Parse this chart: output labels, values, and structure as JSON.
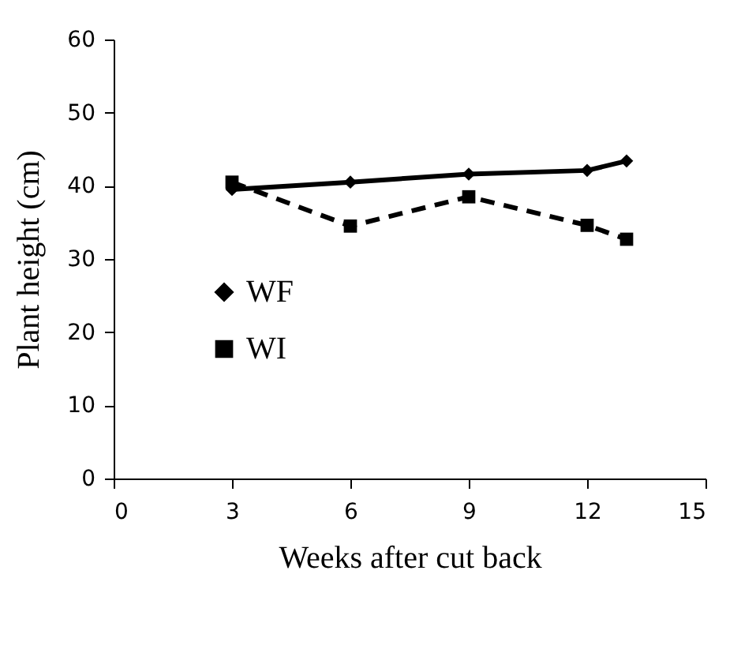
{
  "chart_data": {
    "type": "line",
    "xlabel": "Weeks after cut back",
    "ylabel": "Plant height (cm)",
    "x": [
      3,
      6,
      9,
      12,
      13
    ],
    "series": [
      {
        "name": "WF",
        "color": "#000000",
        "values": [
          39.5,
          40.5,
          41.6,
          42.1,
          43.4
        ],
        "marker": "diamond",
        "line_style": "solid"
      },
      {
        "name": "WI",
        "color": "#000000",
        "values": [
          40.5,
          34.5,
          38.5,
          34.6,
          32.7
        ],
        "marker": "square",
        "line_style": "dashed"
      }
    ],
    "xlim": [
      0,
      15
    ],
    "xticks": [
      0,
      3,
      6,
      9,
      12,
      15
    ],
    "ylim": [
      0,
      60
    ],
    "yticks": [
      0,
      10,
      20,
      30,
      40,
      50,
      60
    ],
    "grid": false,
    "legend": "left"
  }
}
